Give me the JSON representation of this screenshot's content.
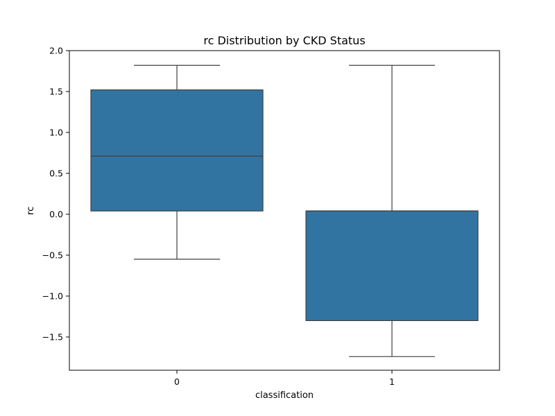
{
  "chart_data": {
    "type": "box",
    "title": "rc Distribution by CKD Status",
    "xlabel": "classification",
    "ylabel": "rc",
    "categories": [
      "0",
      "1"
    ],
    "ylim": [
      -1.9,
      2.0
    ],
    "yticks": [
      2.0,
      1.5,
      1.0,
      0.5,
      0.0,
      -0.5,
      -1.0,
      -1.5
    ],
    "ytick_labels": [
      "2.0",
      "1.5",
      "1.0",
      "0.5",
      "0.0",
      "−0.5",
      "−1.0",
      "−1.5"
    ],
    "grid": false,
    "legend": "none",
    "boxes": [
      {
        "category": "0",
        "whisker_low": -0.55,
        "q1": 0.04,
        "median": 0.71,
        "q3": 1.52,
        "whisker_high": 1.82
      },
      {
        "category": "1",
        "whisker_low": -1.74,
        "q1": -1.3,
        "median": 0.04,
        "q3": 0.04,
        "whisker_high": 1.82
      }
    ],
    "colors": {
      "box_fill": "#3274a1",
      "line": "#3f3f3f",
      "frame": "#000000"
    }
  }
}
